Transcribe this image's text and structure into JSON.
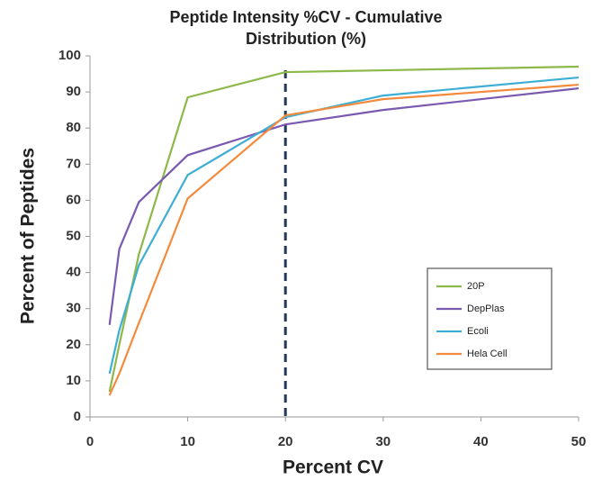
{
  "chart_data": {
    "type": "line",
    "title": [
      "Peptide Intensity %CV - Cumulative",
      "Distribution (%)"
    ],
    "x_label": "Percent CV",
    "y_label": "Percent of Peptides",
    "x": [
      2,
      3,
      5,
      10,
      20,
      30,
      50
    ],
    "series": [
      {
        "name": "20P",
        "color": "#8db84a",
        "values": [
          7,
          20,
          45,
          88.5,
          95.5,
          96,
          97
        ]
      },
      {
        "name": "DepPlas",
        "color": "#7a5ab0",
        "values": [
          25.5,
          46.5,
          59.5,
          72.5,
          81,
          85,
          91
        ]
      },
      {
        "name": "Ecoli",
        "color": "#3eaed4",
        "values": [
          12,
          24,
          42,
          67,
          83,
          89,
          94
        ]
      },
      {
        "name": "Hela Cell",
        "color": "#f38a3c",
        "values": [
          6,
          12,
          26,
          60.5,
          83.5,
          88,
          92
        ]
      }
    ],
    "xlim": [
      0,
      50
    ],
    "xticks": [
      0,
      10,
      20,
      30,
      40,
      50
    ],
    "ylim": [
      0,
      100
    ],
    "yticks": [
      0,
      10,
      20,
      30,
      40,
      50,
      60,
      70,
      80,
      90,
      100
    ],
    "reference_x": 20,
    "reference_color": "#1f3a5a",
    "grid": false,
    "legend": "lower right"
  }
}
